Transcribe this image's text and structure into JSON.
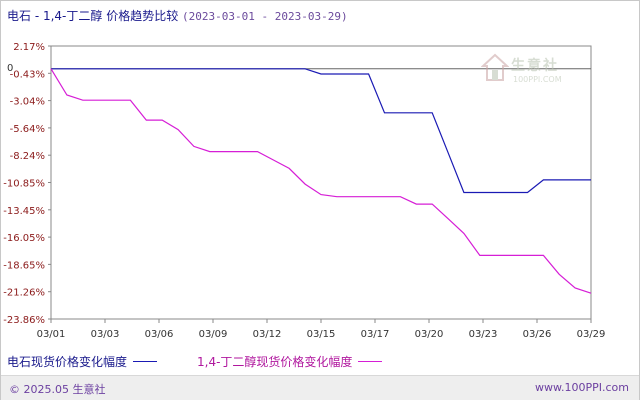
{
  "title": {
    "main": "电石 - 1,4-丁二醇 价格趋势比较",
    "range": "(2023-03-01 - 2023-03-29)"
  },
  "watermark": {
    "name": "生意社",
    "url": "100PPI.COM"
  },
  "footer": {
    "copyright": "© 2025.05 生意社",
    "site": "www.100PPI.com"
  },
  "chart_data": {
    "type": "line",
    "x_tick_labels": [
      "03/01",
      "03/03",
      "03/06",
      "03/09",
      "03/12",
      "03/15",
      "03/17",
      "03/20",
      "03/23",
      "03/26",
      "03/29"
    ],
    "y_tick_labels": [
      "2.17%",
      "-0.43%",
      "-3.04%",
      "-5.64%",
      "-8.24%",
      "-10.85%",
      "-13.45%",
      "-16.05%",
      "-18.65%",
      "-21.26%",
      "-23.86%"
    ],
    "ylim": [
      -23.86,
      2.17
    ],
    "zero_label": "0",
    "grid": false,
    "legend_position": "bottom",
    "series": [
      {
        "name": "电石现货价格变化幅度",
        "color": "#1a1ab4",
        "values": [
          0,
          0,
          0,
          0,
          0,
          0,
          0,
          0,
          0,
          0,
          0,
          0,
          0,
          0,
          0,
          0,
          0,
          -0.5,
          -0.5,
          -0.5,
          -0.5,
          -4.2,
          -4.2,
          -4.2,
          -4.2,
          -8.0,
          -11.8,
          -11.8,
          -11.8,
          -11.8,
          -11.8,
          -10.6,
          -10.6,
          -10.6,
          -10.6
        ]
      },
      {
        "name": "1,4-丁二醇现货价格变化幅度",
        "color": "#d61ed6",
        "values": [
          0,
          -2.5,
          -3.0,
          -3.0,
          -3.0,
          -3.0,
          -4.9,
          -4.9,
          -5.8,
          -7.4,
          -7.9,
          -7.9,
          -7.9,
          -7.9,
          -8.7,
          -9.5,
          -11.0,
          -12.0,
          -12.2,
          -12.2,
          -12.2,
          -12.2,
          -12.2,
          -12.9,
          -12.9,
          -14.3,
          -15.7,
          -17.8,
          -17.8,
          -17.8,
          -17.8,
          -17.8,
          -19.6,
          -20.9,
          -21.4
        ]
      }
    ]
  }
}
